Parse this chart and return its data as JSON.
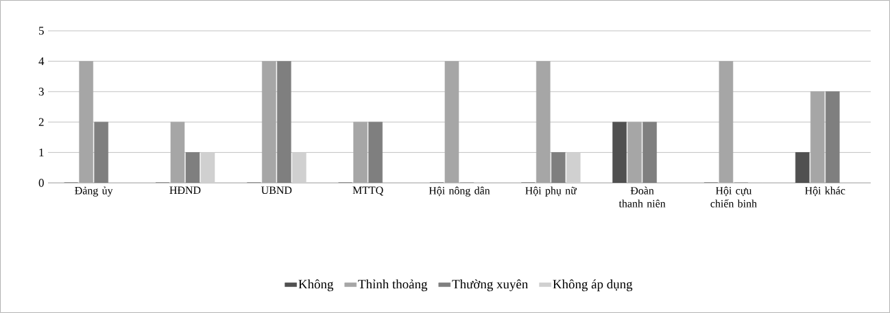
{
  "chart_data": {
    "type": "bar",
    "categories": [
      "Đảng ủy",
      "HĐND",
      "UBND",
      "MTTQ",
      "Hội nông dân",
      "Hội phụ nữ",
      "Đoàn thanh niên",
      "Hội cựu chiến binh",
      "Hội khác"
    ],
    "series": [
      {
        "name": "Không",
        "color": "#505050",
        "values": [
          0,
          0,
          0,
          0,
          0,
          0,
          2,
          0,
          1
        ]
      },
      {
        "name": "Thỉnh thoảng",
        "color": "#a6a6a6",
        "values": [
          4,
          2,
          4,
          2,
          4,
          4,
          2,
          4,
          3
        ]
      },
      {
        "name": "Thường xuyên",
        "color": "#7f7f7f",
        "values": [
          2,
          1,
          4,
          2,
          0,
          1,
          2,
          0,
          3
        ]
      },
      {
        "name": "Không áp dụng",
        "color": "#d0d0d0",
        "values": [
          0,
          1,
          1,
          0,
          0,
          1,
          0,
          0,
          0
        ]
      }
    ],
    "ylim": [
      0,
      5
    ],
    "yticks": [
      0,
      1,
      2,
      3,
      4,
      5
    ],
    "grid": "y",
    "legend": "bottom"
  }
}
